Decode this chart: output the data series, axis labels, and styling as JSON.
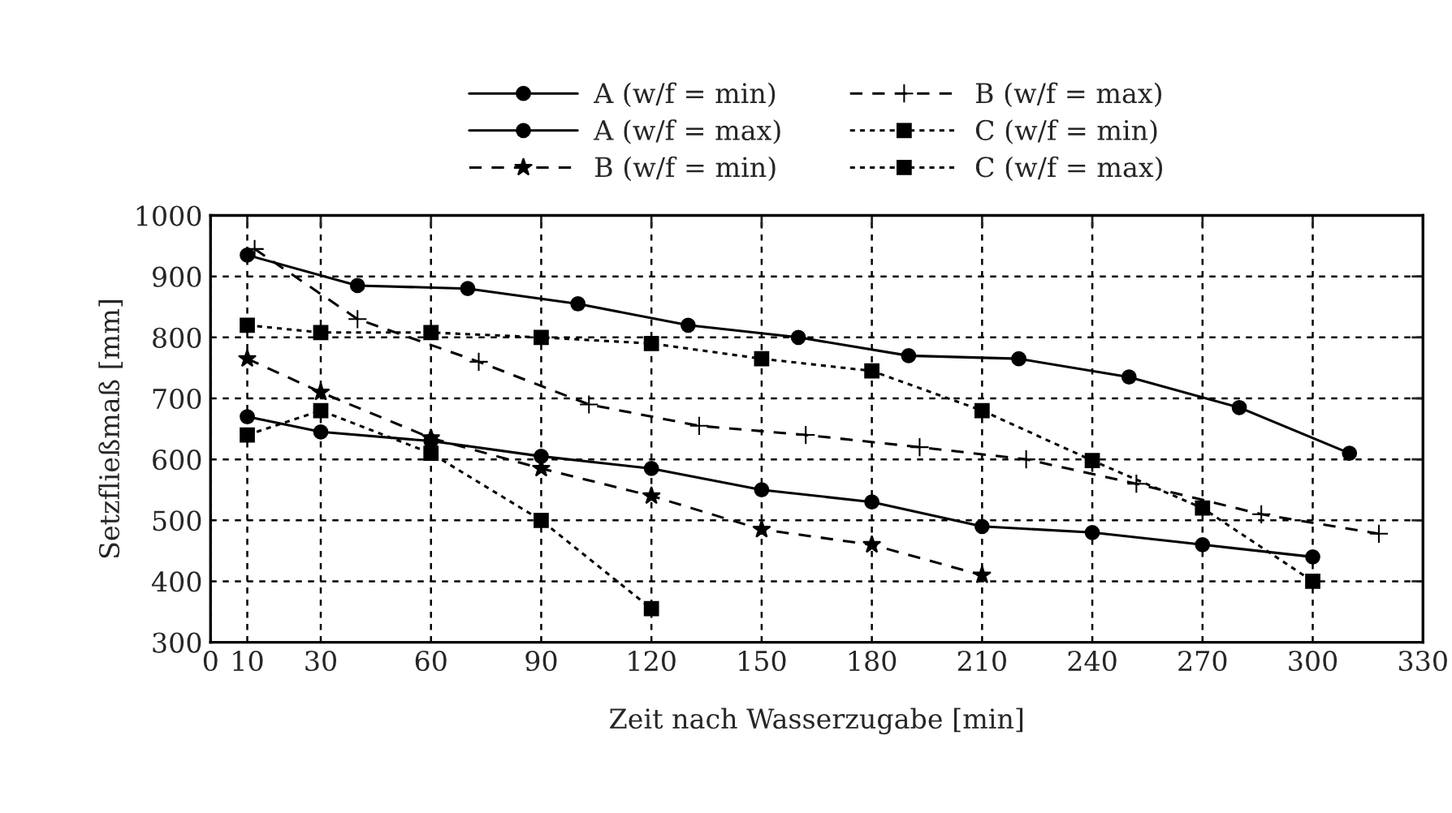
{
  "chart_data": {
    "type": "line",
    "xlabel": "Zeit nach Wasserzugabe [min]",
    "ylabel": "Setzfließmaß [mm]",
    "xlim": [
      0,
      330
    ],
    "xticks": [
      0,
      10,
      30,
      60,
      90,
      120,
      150,
      180,
      210,
      240,
      270,
      300,
      330
    ],
    "ylim": [
      300,
      1000
    ],
    "yticks": [
      300,
      400,
      500,
      600,
      700,
      800,
      900,
      1000
    ],
    "grid": true,
    "legend": "top",
    "series": [
      {
        "name": "A (w/f = min)",
        "color": "#000000",
        "marker": "circle",
        "line_style": "solid",
        "x": [
          10,
          30,
          60,
          90,
          120,
          150,
          180,
          210,
          240,
          270,
          300
        ],
        "values": [
          670,
          645,
          630,
          605,
          585,
          550,
          530,
          490,
          480,
          460,
          440
        ]
      },
      {
        "name": "A (w/f = max)",
        "color": "#000000",
        "marker": "circle",
        "line_style": "solid",
        "x": [
          10,
          40,
          70,
          100,
          130,
          160,
          190,
          220,
          250,
          280,
          310
        ],
        "values": [
          935,
          885,
          880,
          855,
          820,
          800,
          770,
          765,
          735,
          685,
          610
        ]
      },
      {
        "name": "B (w/f = min)",
        "color": "#000000",
        "marker": "star",
        "line_style": "dashed",
        "x": [
          10,
          30,
          60,
          90,
          120,
          150,
          180,
          210
        ],
        "values": [
          765,
          710,
          635,
          585,
          540,
          485,
          460,
          410
        ]
      },
      {
        "name": "B (w/f = max)",
        "color": "#000000",
        "marker": "cross",
        "line_style": "dashed",
        "x": [
          12,
          40,
          73,
          103,
          133,
          162,
          193,
          222,
          252,
          286,
          318
        ],
        "values": [
          945,
          830,
          760,
          690,
          655,
          640,
          620,
          600,
          560,
          510,
          478
        ]
      },
      {
        "name": "C (w/f = min)",
        "color": "#000000",
        "marker": "square",
        "line_style": "dotted",
        "x": [
          10,
          30,
          60,
          90,
          120
        ],
        "values": [
          640,
          680,
          610,
          500,
          355
        ]
      },
      {
        "name": "C (w/f = max)",
        "color": "#000000",
        "marker": "square",
        "line_style": "dotted",
        "x": [
          10,
          30,
          60,
          90,
          120,
          150,
          180,
          210,
          240,
          270,
          300
        ],
        "values": [
          820,
          808,
          808,
          800,
          790,
          765,
          745,
          680,
          598,
          520,
          400
        ]
      }
    ]
  }
}
